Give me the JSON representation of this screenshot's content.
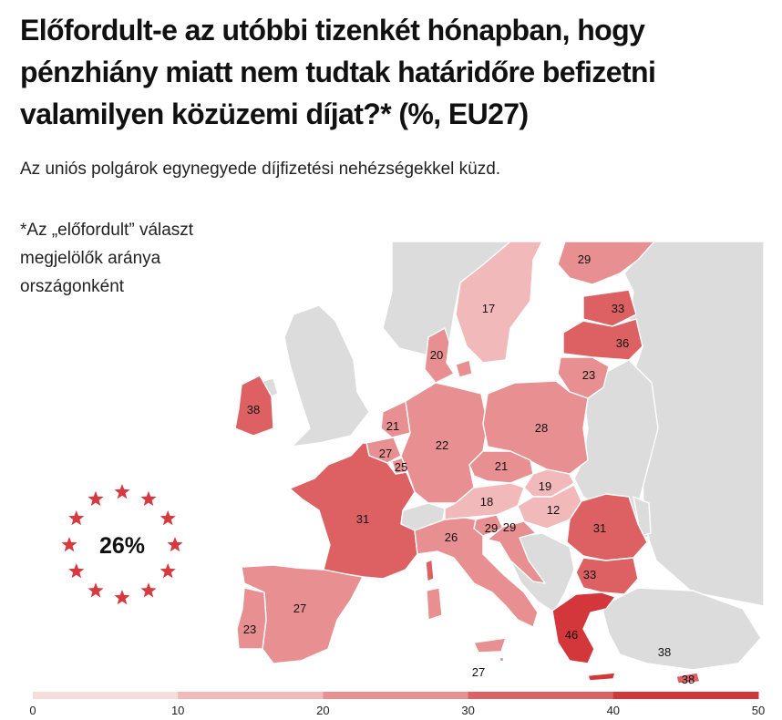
{
  "header": {
    "title": "Előfordult-e az utóbbi tizenkét hónapban, hogy pénzhiány miatt nem tudtak határidőre befizetni valamilyen közüzemi díjat?* (%, EU27)",
    "subtitle": "Az uniós polgárok egynegyede díjfizetési nehézségekkel küzd.",
    "footnote": "*Az „előfordult” választ megjelölők aránya országonként"
  },
  "eu_average": {
    "value": "26%",
    "icon": "eu-stars-icon",
    "star_color": "#d7393f"
  },
  "colors": {
    "no_data": "#dcdcdc",
    "scale": [
      "#f7dcdc",
      "#f2b9ba",
      "#e88f91",
      "#dd6163",
      "#d3373b"
    ]
  },
  "legend": {
    "ticks": [
      "0",
      "10",
      "20",
      "30",
      "40",
      "50"
    ]
  },
  "chart_data": {
    "type": "choropleth",
    "scale_min": 0,
    "scale_max": 50,
    "regions": [
      {
        "code": "FI",
        "value": 29,
        "label": "29"
      },
      {
        "code": "SE",
        "value": 17,
        "label": "17"
      },
      {
        "code": "EE",
        "value": 33,
        "label": "33"
      },
      {
        "code": "LV",
        "value": 36,
        "label": "36"
      },
      {
        "code": "LT",
        "value": 23,
        "label": "23"
      },
      {
        "code": "DK",
        "value": 20,
        "label": "20"
      },
      {
        "code": "IE",
        "value": 38,
        "label": "38"
      },
      {
        "code": "NL",
        "value": 21,
        "label": "21"
      },
      {
        "code": "BE",
        "value": 27,
        "label": "27"
      },
      {
        "code": "LU",
        "value": 25,
        "label": "25"
      },
      {
        "code": "DE",
        "value": 22,
        "label": "22"
      },
      {
        "code": "PL",
        "value": 28,
        "label": "28"
      },
      {
        "code": "CZ",
        "value": 21,
        "label": "21"
      },
      {
        "code": "SK",
        "value": 19,
        "label": "19"
      },
      {
        "code": "AT",
        "value": 18,
        "label": "18"
      },
      {
        "code": "HU",
        "value": 12,
        "label": "12"
      },
      {
        "code": "SI",
        "value": 29,
        "label": "29"
      },
      {
        "code": "HR",
        "value": 29,
        "label": "29"
      },
      {
        "code": "FR",
        "value": 31,
        "label": "31"
      },
      {
        "code": "IT",
        "value": 26,
        "label": "26"
      },
      {
        "code": "RO",
        "value": 31,
        "label": "31"
      },
      {
        "code": "BG",
        "value": 33,
        "label": "33"
      },
      {
        "code": "ES",
        "value": 27,
        "label": "27"
      },
      {
        "code": "PT",
        "value": 23,
        "label": "23"
      },
      {
        "code": "GR",
        "value": 46,
        "label": "46"
      },
      {
        "code": "CY",
        "value": 38,
        "label": "38"
      },
      {
        "code": "MT",
        "value": 27,
        "label": "27"
      }
    ]
  }
}
